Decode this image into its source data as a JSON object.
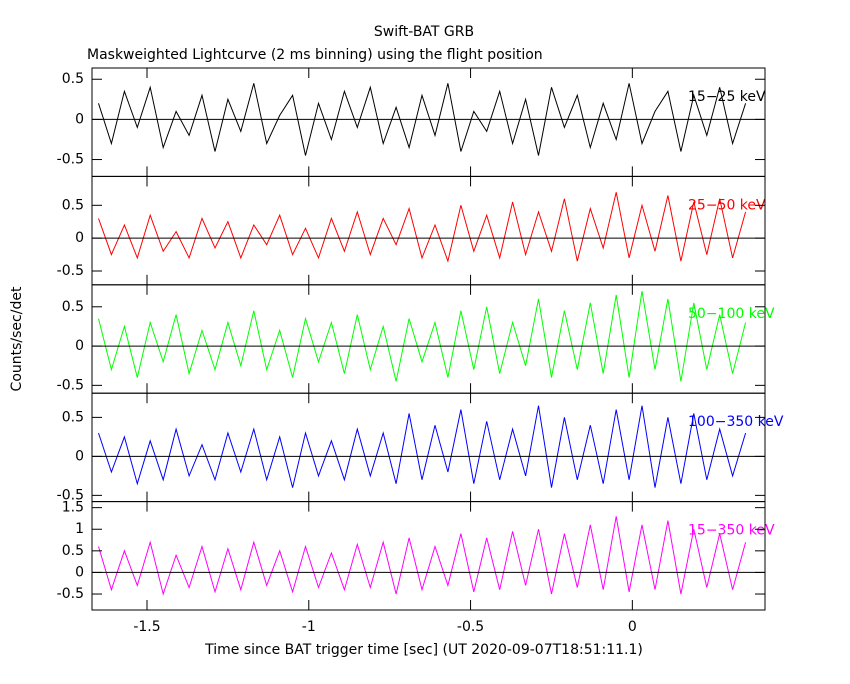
{
  "chart_data": [
    {
      "type": "line",
      "title": "Swift-BAT GRB",
      "subtitle": "Maskweighted Lightcurve (2 ms binning) using the flight position",
      "ylabel": "Counts/sec/det",
      "x": [
        -1.65,
        -1.61,
        -1.57,
        -1.53,
        -1.49,
        -1.45,
        -1.41,
        -1.37,
        -1.33,
        -1.29,
        -1.25,
        -1.21,
        -1.17,
        -1.13,
        -1.09,
        -1.05,
        -1.01,
        -0.97,
        -0.93,
        -0.89,
        -0.85,
        -0.81,
        -0.77,
        -0.73,
        -0.69,
        -0.65,
        -0.61,
        -0.57,
        -0.53,
        -0.49,
        -0.45,
        -0.41,
        -0.37,
        -0.33,
        -0.29,
        -0.25,
        -0.21,
        -0.17,
        -0.13,
        -0.09,
        -0.05,
        -0.01,
        0.03,
        0.07,
        0.11,
        0.15,
        0.19,
        0.23,
        0.27,
        0.31,
        0.35
      ],
      "series": [
        {
          "name": "15−25 keV",
          "color": "#000000",
          "values": [
            0.2,
            -0.3,
            0.35,
            -0.1,
            0.4,
            -0.35,
            0.1,
            -0.2,
            0.3,
            -0.4,
            0.25,
            -0.15,
            0.45,
            -0.3,
            0.05,
            0.3,
            -0.45,
            0.2,
            -0.25,
            0.35,
            -0.1,
            0.4,
            -0.3,
            0.15,
            -0.35,
            0.3,
            -0.2,
            0.45,
            -0.4,
            0.1,
            -0.15,
            0.35,
            -0.3,
            0.25,
            -0.45,
            0.4,
            -0.1,
            0.3,
            -0.35,
            0.2,
            -0.25,
            0.45,
            -0.3,
            0.1,
            0.35,
            -0.4,
            0.3,
            -0.2,
            0.4,
            -0.3,
            0.2
          ]
        }
      ],
      "xlim": [
        -1.67,
        0.41
      ],
      "ylim": [
        -0.71,
        0.64
      ],
      "yticks": [
        -0.5,
        0,
        0.5
      ]
    },
    {
      "type": "line",
      "x": [
        -1.65,
        -1.61,
        -1.57,
        -1.53,
        -1.49,
        -1.45,
        -1.41,
        -1.37,
        -1.33,
        -1.29,
        -1.25,
        -1.21,
        -1.17,
        -1.13,
        -1.09,
        -1.05,
        -1.01,
        -0.97,
        -0.93,
        -0.89,
        -0.85,
        -0.81,
        -0.77,
        -0.73,
        -0.69,
        -0.65,
        -0.61,
        -0.57,
        -0.53,
        -0.49,
        -0.45,
        -0.41,
        -0.37,
        -0.33,
        -0.29,
        -0.25,
        -0.21,
        -0.17,
        -0.13,
        -0.09,
        -0.05,
        -0.01,
        0.03,
        0.07,
        0.11,
        0.15,
        0.19,
        0.23,
        0.27,
        0.31,
        0.35
      ],
      "series": [
        {
          "name": "25−50 keV",
          "color": "#ff0000",
          "values": [
            0.3,
            -0.25,
            0.2,
            -0.3,
            0.35,
            -0.2,
            0.1,
            -0.3,
            0.3,
            -0.15,
            0.25,
            -0.3,
            0.2,
            -0.1,
            0.35,
            -0.25,
            0.15,
            -0.3,
            0.3,
            -0.2,
            0.4,
            -0.25,
            0.3,
            -0.1,
            0.45,
            -0.3,
            0.2,
            -0.35,
            0.5,
            -0.2,
            0.35,
            -0.3,
            0.55,
            -0.25,
            0.4,
            -0.2,
            0.6,
            -0.35,
            0.45,
            -0.15,
            0.7,
            -0.3,
            0.5,
            -0.2,
            0.65,
            -0.35,
            0.55,
            -0.25,
            0.6,
            -0.3,
            0.4
          ]
        }
      ],
      "xlim": [
        -1.67,
        0.41
      ],
      "ylim": [
        -0.71,
        0.94
      ],
      "yticks": [
        -0.5,
        0,
        0.5
      ]
    },
    {
      "type": "line",
      "x": [
        -1.65,
        -1.61,
        -1.57,
        -1.53,
        -1.49,
        -1.45,
        -1.41,
        -1.37,
        -1.33,
        -1.29,
        -1.25,
        -1.21,
        -1.17,
        -1.13,
        -1.09,
        -1.05,
        -1.01,
        -0.97,
        -0.93,
        -0.89,
        -0.85,
        -0.81,
        -0.77,
        -0.73,
        -0.69,
        -0.65,
        -0.61,
        -0.57,
        -0.53,
        -0.49,
        -0.45,
        -0.41,
        -0.37,
        -0.33,
        -0.29,
        -0.25,
        -0.21,
        -0.17,
        -0.13,
        -0.09,
        -0.05,
        -0.01,
        0.03,
        0.07,
        0.11,
        0.15,
        0.19,
        0.23,
        0.27,
        0.31,
        0.35
      ],
      "series": [
        {
          "name": "50−100 keV",
          "color": "#00ff00",
          "values": [
            0.35,
            -0.3,
            0.25,
            -0.4,
            0.3,
            -0.2,
            0.4,
            -0.35,
            0.2,
            -0.3,
            0.3,
            -0.25,
            0.45,
            -0.3,
            0.2,
            -0.4,
            0.35,
            -0.2,
            0.3,
            -0.35,
            0.4,
            -0.3,
            0.25,
            -0.45,
            0.35,
            -0.2,
            0.3,
            -0.4,
            0.45,
            -0.3,
            0.5,
            -0.35,
            0.3,
            -0.25,
            0.6,
            -0.4,
            0.45,
            -0.3,
            0.55,
            -0.35,
            0.65,
            -0.4,
            0.7,
            -0.3,
            0.6,
            -0.45,
            0.55,
            -0.3,
            0.4,
            -0.35,
            0.3
          ]
        }
      ],
      "xlim": [
        -1.67,
        0.41
      ],
      "ylim": [
        -0.6,
        0.78
      ],
      "yticks": [
        -0.5,
        0,
        0.5
      ]
    },
    {
      "type": "line",
      "x": [
        -1.65,
        -1.61,
        -1.57,
        -1.53,
        -1.49,
        -1.45,
        -1.41,
        -1.37,
        -1.33,
        -1.29,
        -1.25,
        -1.21,
        -1.17,
        -1.13,
        -1.09,
        -1.05,
        -1.01,
        -0.97,
        -0.93,
        -0.89,
        -0.85,
        -0.81,
        -0.77,
        -0.73,
        -0.69,
        -0.65,
        -0.61,
        -0.57,
        -0.53,
        -0.49,
        -0.45,
        -0.41,
        -0.37,
        -0.33,
        -0.29,
        -0.25,
        -0.21,
        -0.17,
        -0.13,
        -0.09,
        -0.05,
        -0.01,
        0.03,
        0.07,
        0.11,
        0.15,
        0.19,
        0.23,
        0.27,
        0.31,
        0.35
      ],
      "series": [
        {
          "name": "100−350 keV",
          "color": "#0000ff",
          "values": [
            0.3,
            -0.2,
            0.25,
            -0.35,
            0.2,
            -0.3,
            0.35,
            -0.25,
            0.15,
            -0.3,
            0.3,
            -0.2,
            0.35,
            -0.3,
            0.25,
            -0.4,
            0.3,
            -0.25,
            0.2,
            -0.3,
            0.35,
            -0.25,
            0.3,
            -0.35,
            0.55,
            -0.3,
            0.4,
            -0.2,
            0.6,
            -0.35,
            0.45,
            -0.3,
            0.35,
            -0.25,
            0.65,
            -0.4,
            0.5,
            -0.3,
            0.4,
            -0.35,
            0.6,
            -0.3,
            0.65,
            -0.4,
            0.5,
            -0.35,
            0.55,
            -0.3,
            0.35,
            -0.25,
            0.3
          ]
        }
      ],
      "xlim": [
        -1.67,
        0.41
      ],
      "ylim": [
        -0.58,
        0.81
      ],
      "yticks": [
        -0.5,
        0,
        0.5
      ]
    },
    {
      "type": "line",
      "xlabel": "Time since BAT trigger time [sec] (UT 2020-09-07T18:51:11.1)",
      "x": [
        -1.65,
        -1.61,
        -1.57,
        -1.53,
        -1.49,
        -1.45,
        -1.41,
        -1.37,
        -1.33,
        -1.29,
        -1.25,
        -1.21,
        -1.17,
        -1.13,
        -1.09,
        -1.05,
        -1.01,
        -0.97,
        -0.93,
        -0.89,
        -0.85,
        -0.81,
        -0.77,
        -0.73,
        -0.69,
        -0.65,
        -0.61,
        -0.57,
        -0.53,
        -0.49,
        -0.45,
        -0.41,
        -0.37,
        -0.33,
        -0.29,
        -0.25,
        -0.21,
        -0.17,
        -0.13,
        -0.09,
        -0.05,
        -0.01,
        0.03,
        0.07,
        0.11,
        0.15,
        0.19,
        0.23,
        0.27,
        0.31,
        0.35
      ],
      "series": [
        {
          "name": "15−350 keV",
          "color": "#ff00ff",
          "values": [
            0.6,
            -0.4,
            0.5,
            -0.3,
            0.7,
            -0.5,
            0.4,
            -0.35,
            0.6,
            -0.45,
            0.55,
            -0.4,
            0.7,
            -0.3,
            0.5,
            -0.45,
            0.6,
            -0.35,
            0.45,
            -0.4,
            0.65,
            -0.35,
            0.7,
            -0.5,
            0.8,
            -0.4,
            0.6,
            -0.3,
            0.9,
            -0.45,
            0.8,
            -0.4,
            0.95,
            -0.3,
            1.0,
            -0.5,
            0.9,
            -0.35,
            1.1,
            -0.4,
            1.3,
            -0.45,
            1.1,
            -0.4,
            1.2,
            -0.5,
            1.0,
            -0.35,
            0.9,
            -0.4,
            0.7
          ]
        }
      ],
      "xlim": [
        -1.67,
        0.41
      ],
      "xticks": [
        -1.5,
        -1,
        -0.5,
        0
      ],
      "ylim": [
        -0.87,
        1.64
      ],
      "yticks": [
        -0.5,
        0,
        0.5,
        1,
        1.5
      ]
    }
  ]
}
